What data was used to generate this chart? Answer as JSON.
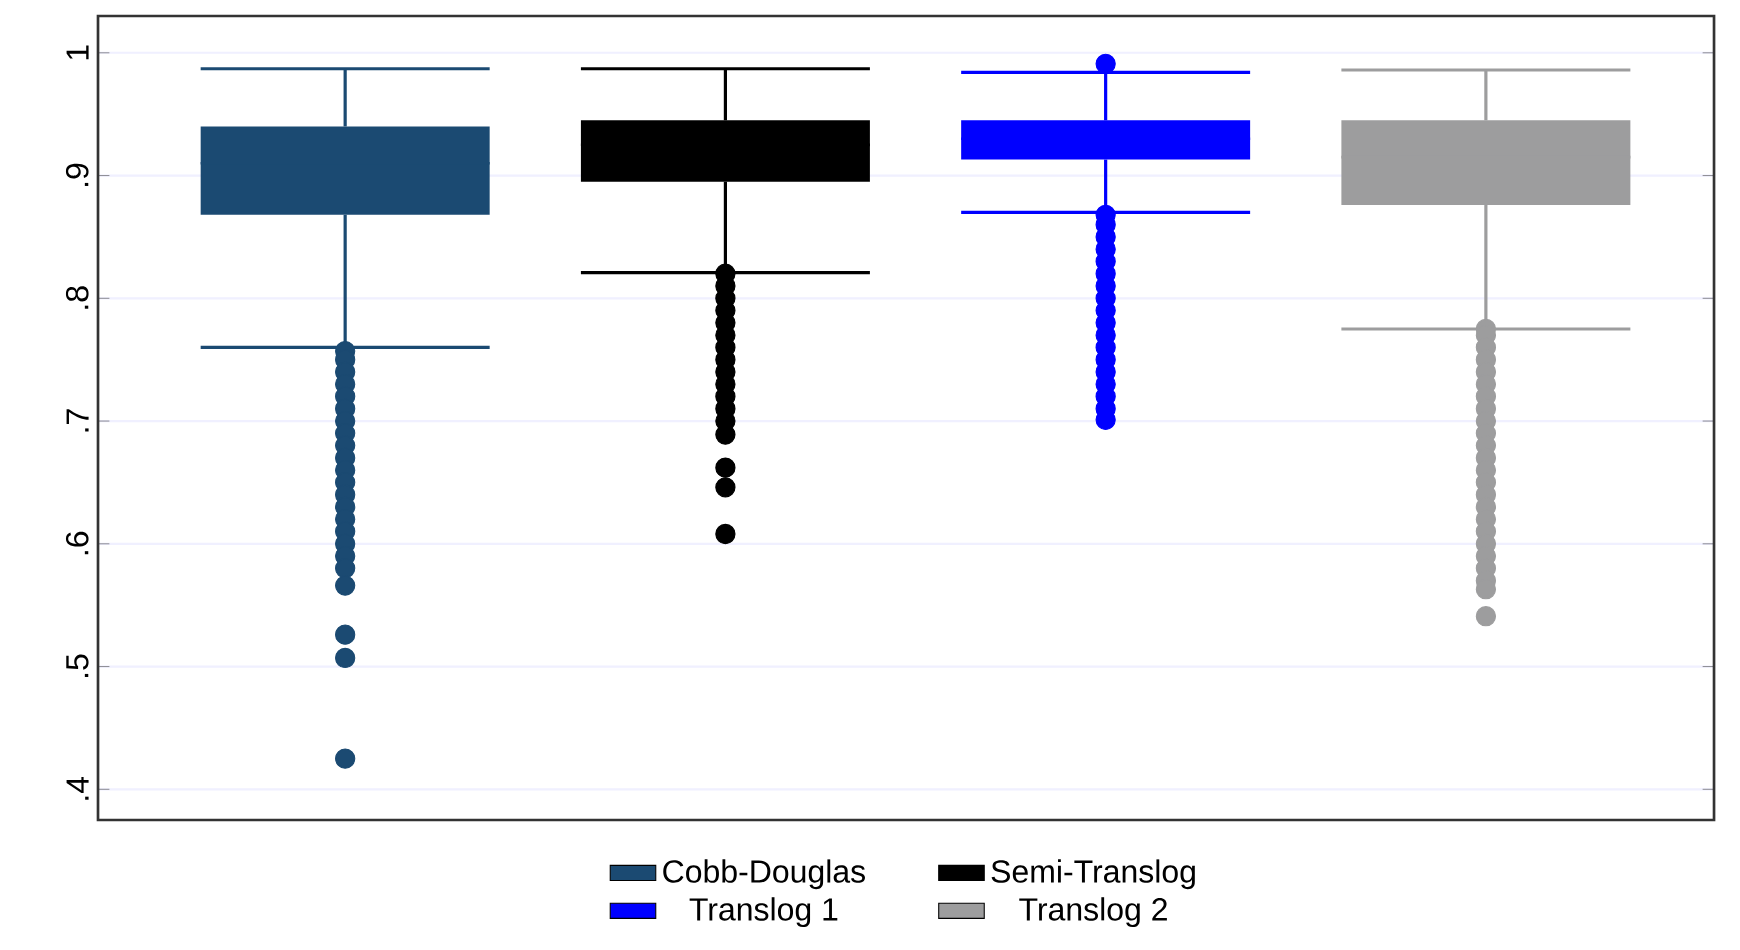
{
  "chart_data": {
    "type": "box",
    "categories": [
      null,
      null,
      null,
      null
    ],
    "series": [
      {
        "name": "Cobb-Douglas",
        "color": "#1b4a72",
        "boxes": [
          {
            "low": 0.76,
            "q1": 0.868,
            "median": 0.91,
            "q3": 0.94,
            "high": 0.987,
            "outliers": [
              0.757,
              0.75,
              0.74,
              0.73,
              0.72,
              0.71,
              0.7,
              0.69,
              0.68,
              0.67,
              0.66,
              0.65,
              0.64,
              0.63,
              0.62,
              0.61,
              0.6,
              0.59,
              0.58,
              0.566,
              0.526,
              0.507,
              0.425
            ]
          },
          null,
          null,
          null
        ]
      },
      {
        "name": "Semi-Translog",
        "color": "#000000",
        "boxes": [
          null,
          {
            "low": 0.821,
            "q1": 0.895,
            "median": 0.925,
            "q3": 0.945,
            "high": 0.987,
            "outliers": [
              0.82,
              0.81,
              0.8,
              0.79,
              0.78,
              0.77,
              0.76,
              0.75,
              0.74,
              0.73,
              0.72,
              0.71,
              0.7,
              0.689,
              0.662,
              0.646,
              0.608
            ]
          },
          null,
          null
        ]
      },
      {
        "name": "Translog 1",
        "color": "#0000ff",
        "boxes": [
          null,
          null,
          {
            "low": 0.87,
            "q1": 0.913,
            "median": 0.93,
            "q3": 0.945,
            "high": 0.984,
            "outliers": [
              0.991,
              0.868,
              0.86,
              0.85,
              0.84,
              0.83,
              0.82,
              0.81,
              0.8,
              0.79,
              0.78,
              0.77,
              0.76,
              0.75,
              0.74,
              0.73,
              0.72,
              0.71,
              0.701
            ]
          },
          null
        ]
      },
      {
        "name": "Translog 2",
        "color": "#9d9d9e",
        "boxes": [
          null,
          null,
          null,
          {
            "low": 0.775,
            "q1": 0.876,
            "median": 0.915,
            "q3": 0.945,
            "high": 0.986,
            "outliers": [
              0.775,
              0.77,
              0.76,
              0.75,
              0.74,
              0.73,
              0.72,
              0.71,
              0.7,
              0.69,
              0.68,
              0.67,
              0.66,
              0.65,
              0.64,
              0.63,
              0.62,
              0.61,
              0.6,
              0.59,
              0.58,
              0.57,
              0.563,
              0.541
            ]
          }
        ]
      }
    ],
    "ylim": [
      0.375,
      1.03
    ],
    "yticks": [
      {
        "value": 0.4,
        "label": ".4"
      },
      {
        "value": 0.5,
        "label": ".5"
      },
      {
        "value": 0.6,
        "label": ".6"
      },
      {
        "value": 0.7,
        "label": ".7"
      },
      {
        "value": 0.8,
        "label": ".8"
      },
      {
        "value": 0.9,
        "label": ".9"
      },
      1
    ],
    "grid": "y",
    "legend": "bottom",
    "marker": "circle"
  }
}
